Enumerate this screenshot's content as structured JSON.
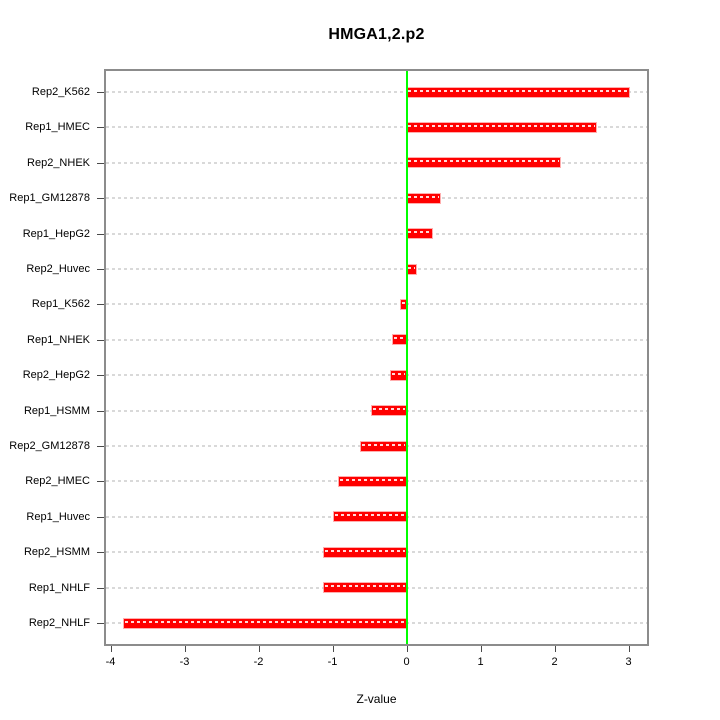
{
  "title": "HMGA1,2.p2",
  "x_axis": {
    "label": "Z-value"
  },
  "colors": {
    "bar": "#ff0000",
    "zero_line": "#00ff00",
    "grid": "#d9d9d9",
    "box_border": "#8c8c8c",
    "tick": "#4a4a4a",
    "text": "#000000",
    "background": "#ffffff"
  },
  "chart_data": {
    "type": "bar",
    "orientation": "horizontal",
    "title": "HMGA1,2.p2",
    "xlabel": "Z-value",
    "ylabel": "",
    "xlim": [
      -4.1,
      3.3
    ],
    "x_ticks": [
      -4,
      -3,
      -2,
      -1,
      0,
      1,
      2,
      3
    ],
    "grid": "dashed horizontal gridline per category",
    "zero_reference_line": 0,
    "legend": "none",
    "categories": [
      "Rep2_K562",
      "Rep1_HMEC",
      "Rep2_NHEK",
      "Rep1_GM12878",
      "Rep1_HepG2",
      "Rep2_Huvec",
      "Rep1_K562",
      "Rep1_NHEK",
      "Rep2_HepG2",
      "Rep1_HSMM",
      "Rep2_GM12878",
      "Rep2_HMEC",
      "Rep1_Huvec",
      "Rep2_HSMM",
      "Rep1_NHLF",
      "Rep2_NHLF"
    ],
    "values": [
      3.0,
      2.56,
      2.08,
      0.45,
      0.34,
      0.13,
      -0.07,
      -0.18,
      -0.21,
      -0.47,
      -0.61,
      -0.91,
      -0.98,
      -1.12,
      -1.11,
      -3.82
    ]
  }
}
